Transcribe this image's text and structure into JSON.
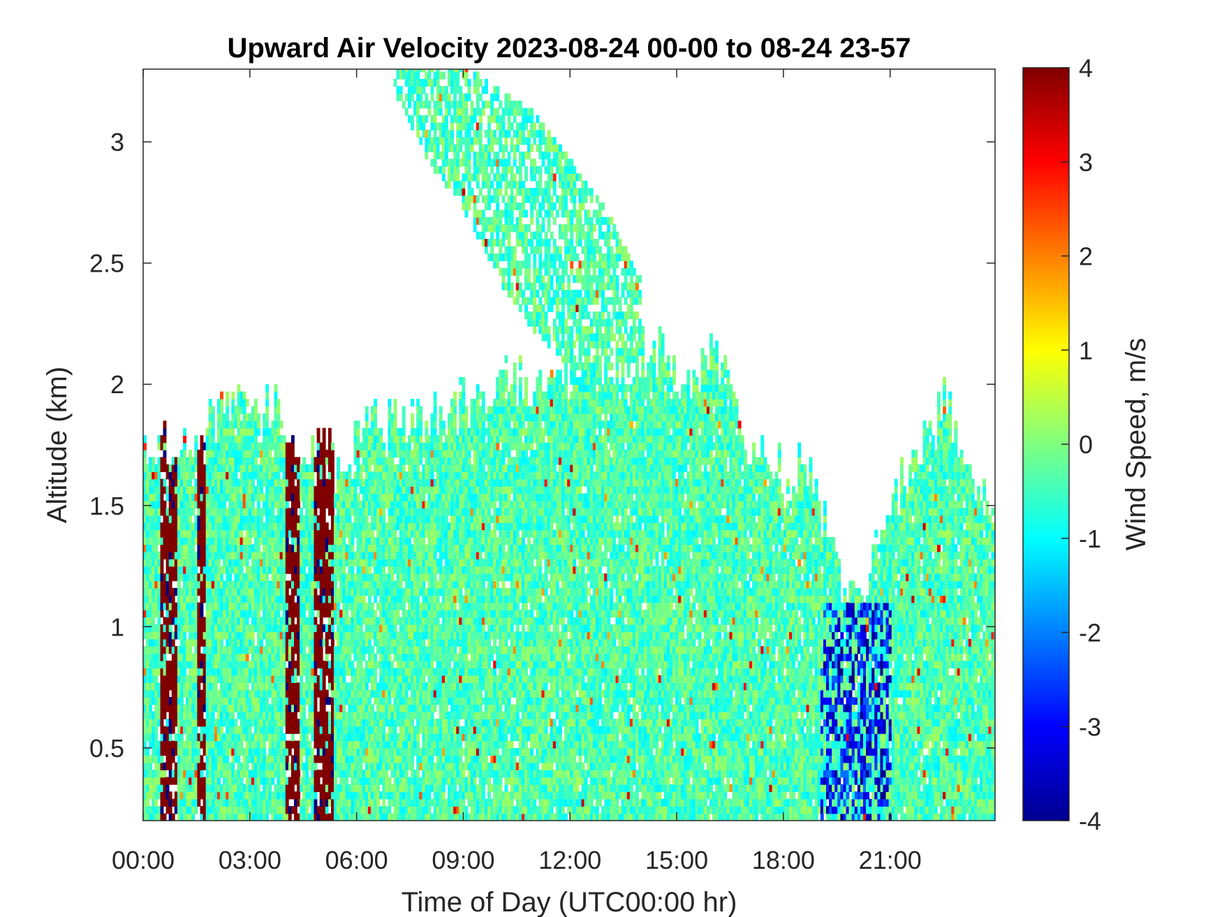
{
  "chart_data": {
    "type": "heatmap",
    "title": "Upward Air Velocity 2023-08-24 00-00 to 08-24 23-57",
    "xlabel": "Time of Day (UTC00:00 hr)",
    "ylabel": "Altitude (km)",
    "x_range_hours": [
      0,
      24
    ],
    "xlim_hours": [
      0,
      23.95
    ],
    "ylim_km": [
      0.2,
      3.3
    ],
    "x_ticks": [
      {
        "hour": 0,
        "label": "00:00"
      },
      {
        "hour": 3,
        "label": "03:00"
      },
      {
        "hour": 6,
        "label": "06:00"
      },
      {
        "hour": 9,
        "label": "09:00"
      },
      {
        "hour": 12,
        "label": "12:00"
      },
      {
        "hour": 15,
        "label": "15:00"
      },
      {
        "hour": 18,
        "label": "18:00"
      },
      {
        "hour": 21,
        "label": "21:00"
      }
    ],
    "y_ticks": [
      {
        "value": 0.5,
        "label": "0.5"
      },
      {
        "value": 1,
        "label": "1"
      },
      {
        "value": 1.5,
        "label": "1.5"
      },
      {
        "value": 2,
        "label": "2"
      },
      {
        "value": 2.5,
        "label": "2.5"
      },
      {
        "value": 3,
        "label": "3"
      }
    ],
    "colorbar": {
      "label": "Wind Speed, m/s",
      "range": [
        -4,
        4
      ],
      "colormap": "jet",
      "ticks": [
        {
          "value": 4,
          "label": "4"
        },
        {
          "value": 3,
          "label": "3"
        },
        {
          "value": 2,
          "label": "2"
        },
        {
          "value": 1,
          "label": "1"
        },
        {
          "value": 0,
          "label": "0"
        },
        {
          "value": -1,
          "label": "-1"
        },
        {
          "value": -2,
          "label": "-2"
        },
        {
          "value": -3,
          "label": "-3"
        },
        {
          "value": -4,
          "label": "-4"
        }
      ]
    },
    "grid": false,
    "cloud_top_km": [
      [
        0.0,
        1.75
      ],
      [
        0.5,
        1.7
      ],
      [
        1.0,
        1.75
      ],
      [
        1.5,
        1.7
      ],
      [
        2.0,
        1.85
      ],
      [
        2.5,
        1.9
      ],
      [
        3.0,
        1.8
      ],
      [
        3.5,
        1.9
      ],
      [
        4.0,
        1.85
      ],
      [
        4.5,
        1.75
      ],
      [
        5.0,
        1.7
      ],
      [
        5.5,
        1.65
      ],
      [
        6.0,
        1.75
      ],
      [
        6.5,
        1.85
      ],
      [
        7.0,
        1.85
      ],
      [
        7.5,
        1.8
      ],
      [
        8.0,
        1.85
      ],
      [
        8.5,
        1.85
      ],
      [
        9.0,
        1.9
      ],
      [
        9.5,
        1.95
      ],
      [
        10.0,
        2.0
      ],
      [
        10.5,
        2.02
      ],
      [
        11.0,
        2.0
      ],
      [
        11.5,
        2.02
      ],
      [
        12.0,
        2.0
      ],
      [
        12.5,
        2.05
      ],
      [
        13.0,
        2.05
      ],
      [
        13.5,
        2.1
      ],
      [
        14.0,
        2.15
      ],
      [
        14.5,
        2.1
      ],
      [
        15.0,
        2.05
      ],
      [
        15.5,
        2.0
      ],
      [
        16.0,
        2.15
      ],
      [
        16.5,
        1.9
      ],
      [
        17.0,
        1.7
      ],
      [
        17.5,
        1.7
      ],
      [
        18.0,
        1.6
      ],
      [
        18.5,
        1.65
      ],
      [
        19.0,
        1.45
      ],
      [
        19.5,
        1.2
      ],
      [
        20.0,
        1.05
      ],
      [
        20.5,
        1.25
      ],
      [
        21.0,
        1.45
      ],
      [
        21.5,
        1.65
      ],
      [
        22.0,
        1.8
      ],
      [
        22.5,
        1.95
      ],
      [
        23.0,
        1.7
      ],
      [
        23.5,
        1.6
      ],
      [
        23.95,
        1.3
      ]
    ],
    "elevated_band_km": [
      [
        7.0,
        3.3,
        3.2
      ],
      [
        8.0,
        3.3,
        2.9
      ],
      [
        9.0,
        3.3,
        2.7
      ],
      [
        10.0,
        3.2,
        2.4
      ],
      [
        11.0,
        3.1,
        2.2
      ],
      [
        12.0,
        2.9,
        2.05
      ],
      [
        13.0,
        2.7,
        2.05
      ],
      [
        14.0,
        2.4,
        2.1
      ]
    ],
    "updraft_columns_hours": [
      [
        0.45,
        0.95
      ],
      [
        1.5,
        1.75
      ],
      [
        4.0,
        4.4
      ],
      [
        4.75,
        5.35
      ]
    ],
    "downdraft_zone_hours": [
      19.0,
      21.0
    ]
  }
}
